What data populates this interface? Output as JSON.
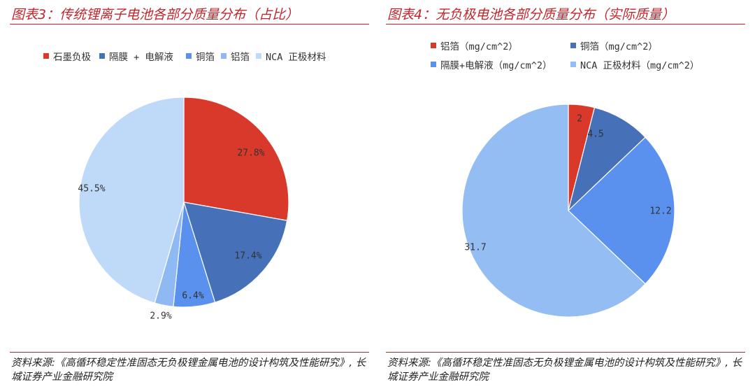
{
  "chart_data": [
    {
      "type": "pie",
      "title": "图表3：传统锂离子电池各部分质量分布（占比）",
      "labels": [
        "石墨负极",
        "隔膜 + 电解液",
        "铜箔",
        "铝箔",
        "NCA 正极材料"
      ],
      "values": [
        27.8,
        17.4,
        6.4,
        2.9,
        45.5
      ],
      "data_labels": [
        "27.8%",
        "17.4%",
        "6.4%",
        "2.9%",
        "45.5%"
      ],
      "colors": [
        "#d9392b",
        "#4670b7",
        "#5b91ee",
        "#8fb9f2",
        "#bfd9f9"
      ],
      "legend": "top",
      "source": "资料来源:《高循环稳定性准固态无负极锂金属电池的设计构筑及性能研究》, 长城证券产业金融研究院"
    },
    {
      "type": "pie",
      "title": "图表4：无负极电池各部分质量分布（实际质量）",
      "labels": [
        "铝箔（mg/cm^2）",
        "铜箔（mg/cm^2）",
        "隔膜+电解液（mg/cm^2）",
        "NCA 正极材料（mg/cm^2）"
      ],
      "values": [
        2,
        4.5,
        12.2,
        31.7
      ],
      "data_labels": [
        "2",
        "4.5",
        "12.2",
        "31.7"
      ],
      "colors": [
        "#d9392b",
        "#4670b7",
        "#5b91ee",
        "#93bdf3"
      ],
      "legend": "top",
      "source": "资料来源:《高循环稳定性准固态无负极锂金属电池的设计构筑及性能研究》, 长城证券产业金融研究院"
    }
  ]
}
